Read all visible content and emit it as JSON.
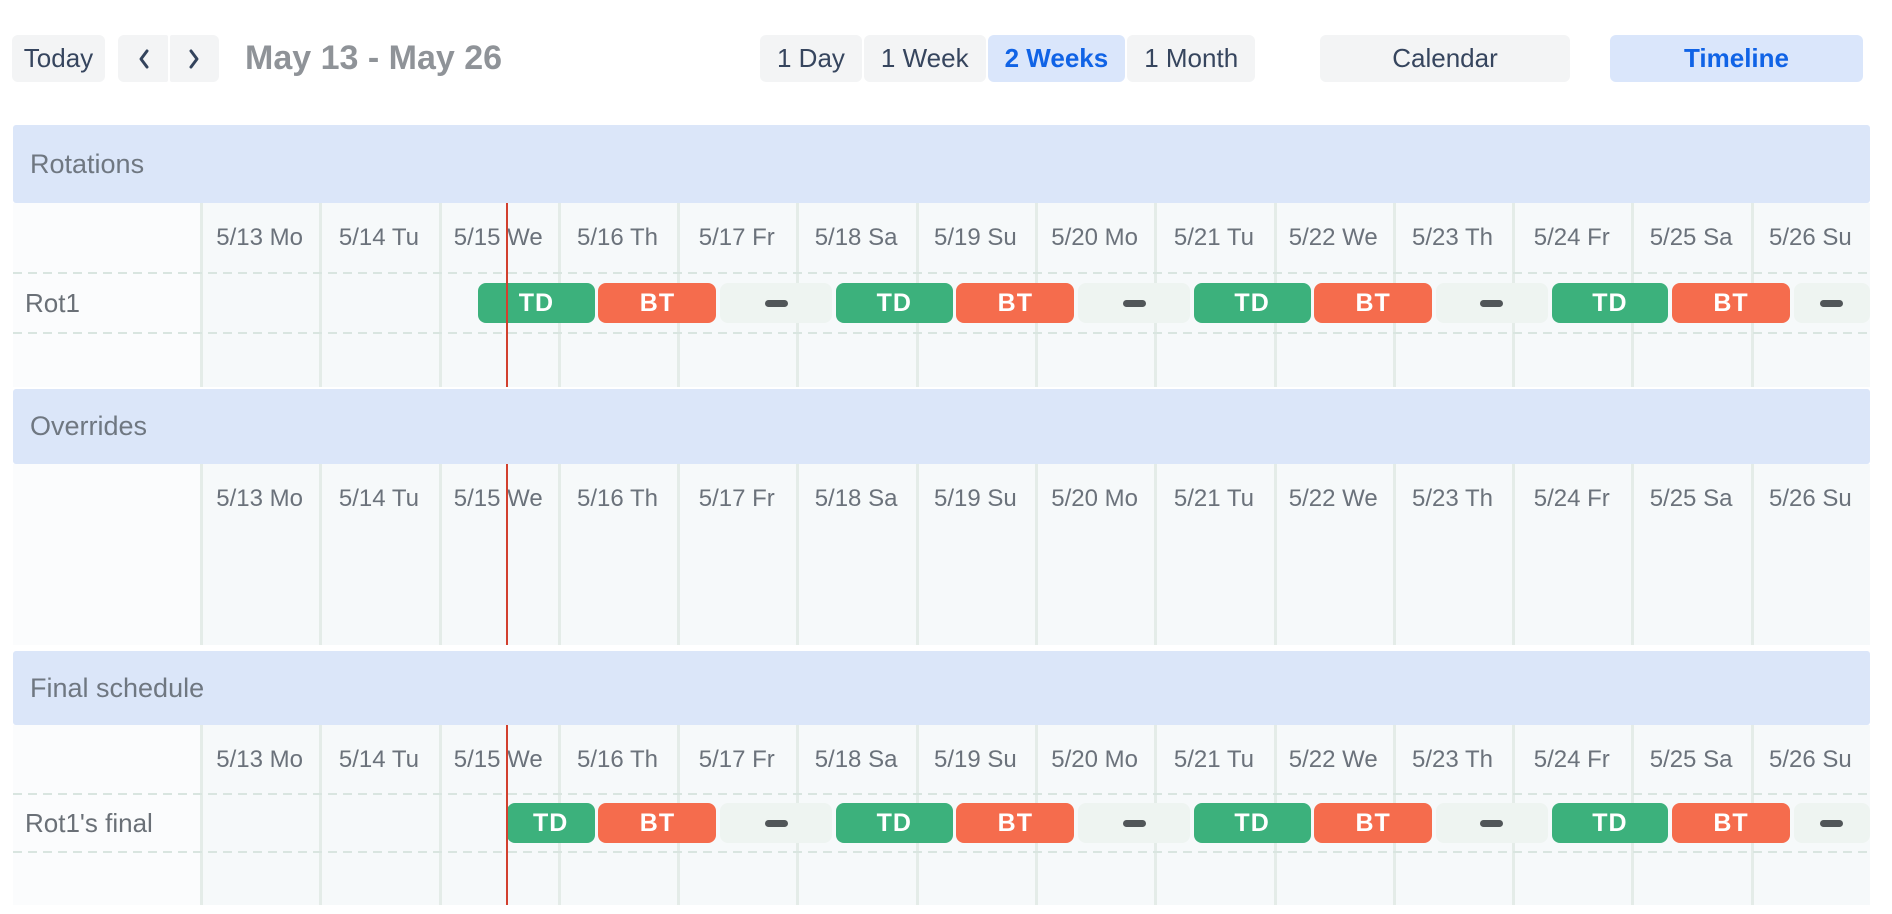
{
  "colors": {
    "green": "#3cb17c",
    "orange": "#f56c4d",
    "gap_bar": "#eef4f1",
    "dash": "#515659",
    "now_line": "#d2402e",
    "band": "#dbe6f9",
    "selected_bg": "#dae6fb",
    "selected_text": "#1063e6"
  },
  "toolbar": {
    "today_label": "Today",
    "prev_icon": "chevron-left",
    "next_icon": "chevron-right",
    "date_range_title": "May 13 - May 26",
    "zoom_options": [
      {
        "label": "1 Day",
        "selected": false
      },
      {
        "label": "1 Week",
        "selected": false
      },
      {
        "label": "2 Weeks",
        "selected": true
      },
      {
        "label": "1 Month",
        "selected": false
      }
    ],
    "calendar_label": "Calendar",
    "calendar_selected": false,
    "timeline_label": "Timeline",
    "timeline_selected": true
  },
  "timeline": {
    "dates": [
      "5/13 Mo",
      "5/14 Tu",
      "5/15 We",
      "5/16 Th",
      "5/17 Fr",
      "5/18 Sa",
      "5/19 Su",
      "5/20 Mo",
      "5/21 Tu",
      "5/22 We",
      "5/23 Th",
      "5/24 Fr",
      "5/25 Sa",
      "5/26 Su"
    ],
    "now_line_day": 2.57,
    "sections": [
      {
        "id": "rotations",
        "title": "Rotations",
        "rows": [
          {
            "label": "Rot1",
            "bars": [
              {
                "type": "shift",
                "label": "TD",
                "color": "green",
                "start_day": 2.33,
                "end_day": 3.31
              },
              {
                "type": "shift",
                "label": "BT",
                "color": "orange",
                "start_day": 3.34,
                "end_day": 4.33
              },
              {
                "type": "gap",
                "start_day": 4.36,
                "end_day": 5.3
              },
              {
                "type": "shift",
                "label": "TD",
                "color": "green",
                "start_day": 5.33,
                "end_day": 6.31
              },
              {
                "type": "shift",
                "label": "BT",
                "color": "orange",
                "start_day": 6.34,
                "end_day": 7.33
              },
              {
                "type": "gap",
                "start_day": 7.36,
                "end_day": 8.3
              },
              {
                "type": "shift",
                "label": "TD",
                "color": "green",
                "start_day": 8.33,
                "end_day": 9.31
              },
              {
                "type": "shift",
                "label": "BT",
                "color": "orange",
                "start_day": 9.34,
                "end_day": 10.33
              },
              {
                "type": "gap",
                "start_day": 10.36,
                "end_day": 11.3
              },
              {
                "type": "shift",
                "label": "TD",
                "color": "green",
                "start_day": 11.33,
                "end_day": 12.31
              },
              {
                "type": "shift",
                "label": "BT",
                "color": "orange",
                "start_day": 12.34,
                "end_day": 13.33
              },
              {
                "type": "gap",
                "start_day": 13.36,
                "end_day": 14.0
              }
            ]
          }
        ]
      },
      {
        "id": "overrides",
        "title": "Overrides",
        "rows": []
      },
      {
        "id": "final",
        "title": "Final schedule",
        "rows": [
          {
            "label": "Rot1's final",
            "bars": [
              {
                "type": "shift",
                "label": "TD",
                "color": "green",
                "start_day": 2.57,
                "end_day": 3.31
              },
              {
                "type": "shift",
                "label": "BT",
                "color": "orange",
                "start_day": 3.34,
                "end_day": 4.33
              },
              {
                "type": "gap",
                "start_day": 4.36,
                "end_day": 5.3
              },
              {
                "type": "shift",
                "label": "TD",
                "color": "green",
                "start_day": 5.33,
                "end_day": 6.31
              },
              {
                "type": "shift",
                "label": "BT",
                "color": "orange",
                "start_day": 6.34,
                "end_day": 7.33
              },
              {
                "type": "gap",
                "start_day": 7.36,
                "end_day": 8.3
              },
              {
                "type": "shift",
                "label": "TD",
                "color": "green",
                "start_day": 8.33,
                "end_day": 9.31
              },
              {
                "type": "shift",
                "label": "BT",
                "color": "orange",
                "start_day": 9.34,
                "end_day": 10.33
              },
              {
                "type": "gap",
                "start_day": 10.36,
                "end_day": 11.3
              },
              {
                "type": "shift",
                "label": "TD",
                "color": "green",
                "start_day": 11.33,
                "end_day": 12.31
              },
              {
                "type": "shift",
                "label": "BT",
                "color": "orange",
                "start_day": 12.34,
                "end_day": 13.33
              },
              {
                "type": "gap",
                "start_day": 13.36,
                "end_day": 14.0
              }
            ]
          }
        ]
      }
    ]
  }
}
